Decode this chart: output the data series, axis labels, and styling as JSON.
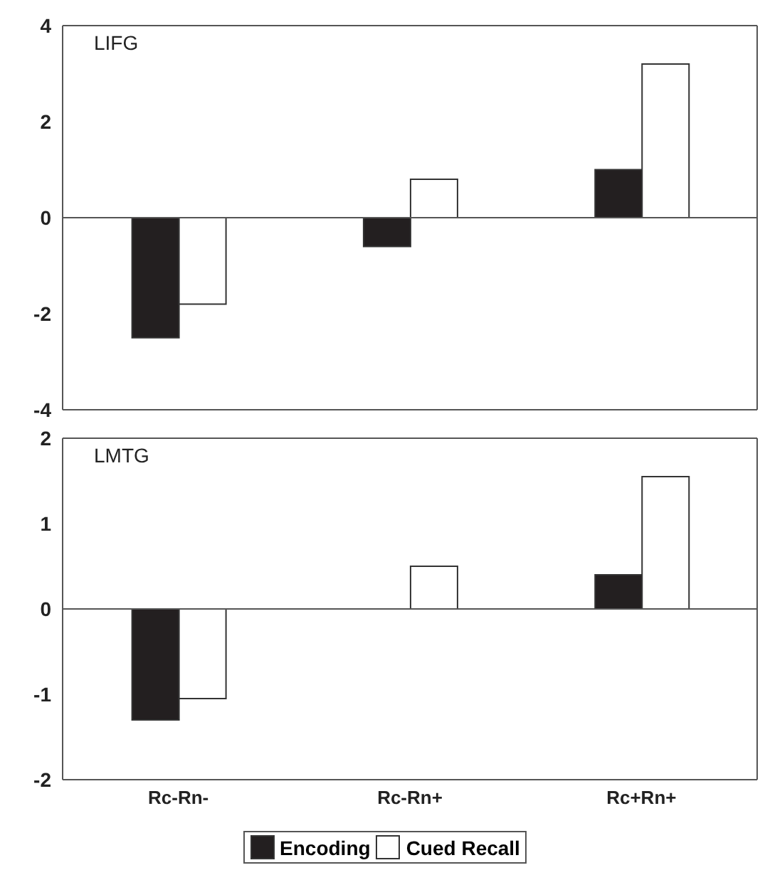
{
  "chart_data": [
    {
      "type": "bar",
      "title": "LIFG",
      "categories": [
        null,
        null,
        null
      ],
      "series": [
        {
          "color": "#231f20",
          "values": [
            -2.5,
            -0.6,
            1.0
          ]
        },
        {
          "color": "#ffffff",
          "values": [
            -1.8,
            0.8,
            3.2
          ]
        }
      ],
      "ylim": [
        -4,
        4
      ],
      "yticks": [
        -4,
        -2,
        0,
        2,
        4
      ],
      "grid": false,
      "legend": false,
      "tick_labels": "y",
      "ref_lines": [
        {
          "axis": "y",
          "value": 0
        }
      ]
    },
    {
      "type": "bar",
      "title": "LMTG",
      "categories": [
        "Rc-Rn-",
        "Rc-Rn+",
        "Rc+Rn+"
      ],
      "series": [
        {
          "name": "Encoding",
          "color": "#231f20",
          "values": [
            -1.3,
            0,
            0.4
          ]
        },
        {
          "name": "Cued Recall",
          "color": "#ffffff",
          "values": [
            -1.05,
            0.5,
            1.55
          ]
        }
      ],
      "ylim": [
        -2,
        2
      ],
      "yticks": [
        -2,
        -1,
        0,
        1,
        2
      ],
      "grid": false,
      "legend": "bottom",
      "ref_lines": [
        {
          "axis": "y",
          "value": 0
        }
      ]
    }
  ]
}
